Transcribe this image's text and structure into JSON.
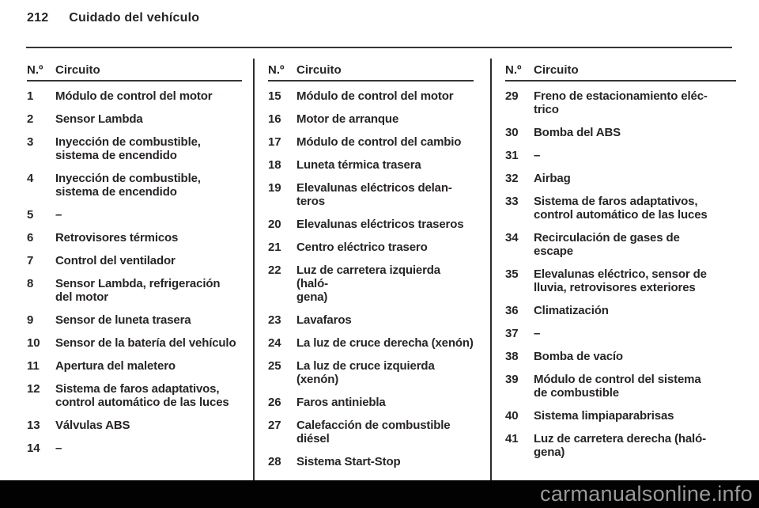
{
  "header": {
    "page_number": "212",
    "chapter_title": "Cuidado del vehículo"
  },
  "table": {
    "header": {
      "number_label": "N.º",
      "circuit_label": "Circuito"
    },
    "columns": [
      {
        "rows": [
          {
            "num": "1",
            "circuit": "Módulo de control del motor"
          },
          {
            "num": "2",
            "circuit": "Sensor Lambda"
          },
          {
            "num": "3",
            "circuit": "Inyección de combustible,\nsistema de encendido"
          },
          {
            "num": "4",
            "circuit": "Inyección de combustible,\nsistema de encendido"
          },
          {
            "num": "5",
            "circuit": "–"
          },
          {
            "num": "6",
            "circuit": "Retrovisores térmicos"
          },
          {
            "num": "7",
            "circuit": "Control del ventilador"
          },
          {
            "num": "8",
            "circuit": "Sensor Lambda, refrigeración\ndel motor"
          },
          {
            "num": "9",
            "circuit": "Sensor de luneta trasera"
          },
          {
            "num": "10",
            "circuit": "Sensor de la batería del vehículo"
          },
          {
            "num": "11",
            "circuit": "Apertura del maletero"
          },
          {
            "num": "12",
            "circuit": "Sistema de faros adaptativos,\ncontrol automático de las luces"
          },
          {
            "num": "13",
            "circuit": "Válvulas ABS"
          },
          {
            "num": "14",
            "circuit": "–"
          }
        ]
      },
      {
        "rows": [
          {
            "num": "15",
            "circuit": "Módulo de control del motor"
          },
          {
            "num": "16",
            "circuit": "Motor de arranque"
          },
          {
            "num": "17",
            "circuit": "Módulo de control del cambio"
          },
          {
            "num": "18",
            "circuit": "Luneta térmica trasera"
          },
          {
            "num": "19",
            "circuit": "Elevalunas eléctricos delan-\nteros"
          },
          {
            "num": "20",
            "circuit": "Elevalunas eléctricos traseros"
          },
          {
            "num": "21",
            "circuit": "Centro eléctrico trasero"
          },
          {
            "num": "22",
            "circuit": "Luz de carretera izquierda (haló-\ngena)"
          },
          {
            "num": "23",
            "circuit": "Lavafaros"
          },
          {
            "num": "24",
            "circuit": "La luz de cruce derecha (xenón)"
          },
          {
            "num": "25",
            "circuit": "La luz de cruce izquierda\n(xenón)"
          },
          {
            "num": "26",
            "circuit": "Faros antiniebla"
          },
          {
            "num": "27",
            "circuit": "Calefacción de combustible\ndiésel"
          },
          {
            "num": "28",
            "circuit": "Sistema Start-Stop"
          }
        ]
      },
      {
        "rows": [
          {
            "num": "29",
            "circuit": "Freno de estacionamiento eléc-\ntrico"
          },
          {
            "num": "30",
            "circuit": "Bomba del ABS"
          },
          {
            "num": "31",
            "circuit": "–"
          },
          {
            "num": "32",
            "circuit": "Airbag"
          },
          {
            "num": "33",
            "circuit": "Sistema de faros adaptativos,\ncontrol automático de las luces"
          },
          {
            "num": "34",
            "circuit": "Recirculación de gases de\nescape"
          },
          {
            "num": "35",
            "circuit": "Elevalunas eléctrico, sensor de\nlluvia, retrovisores exteriores"
          },
          {
            "num": "36",
            "circuit": "Climatización"
          },
          {
            "num": "37",
            "circuit": "–"
          },
          {
            "num": "38",
            "circuit": "Bomba de vacío"
          },
          {
            "num": "39",
            "circuit": "Módulo de control del sistema\nde combustible"
          },
          {
            "num": "40",
            "circuit": "Sistema limpiaparabrisas"
          },
          {
            "num": "41",
            "circuit": "Luz de carretera derecha (haló-\ngena)"
          }
        ]
      }
    ]
  },
  "watermark": {
    "text": "carmanualsonline.info"
  },
  "colors": {
    "text": "#282425",
    "rule": "#393436",
    "watermark_bar": "#020202",
    "watermark_text": "#9a9a9a",
    "background": "#ffffff"
  }
}
